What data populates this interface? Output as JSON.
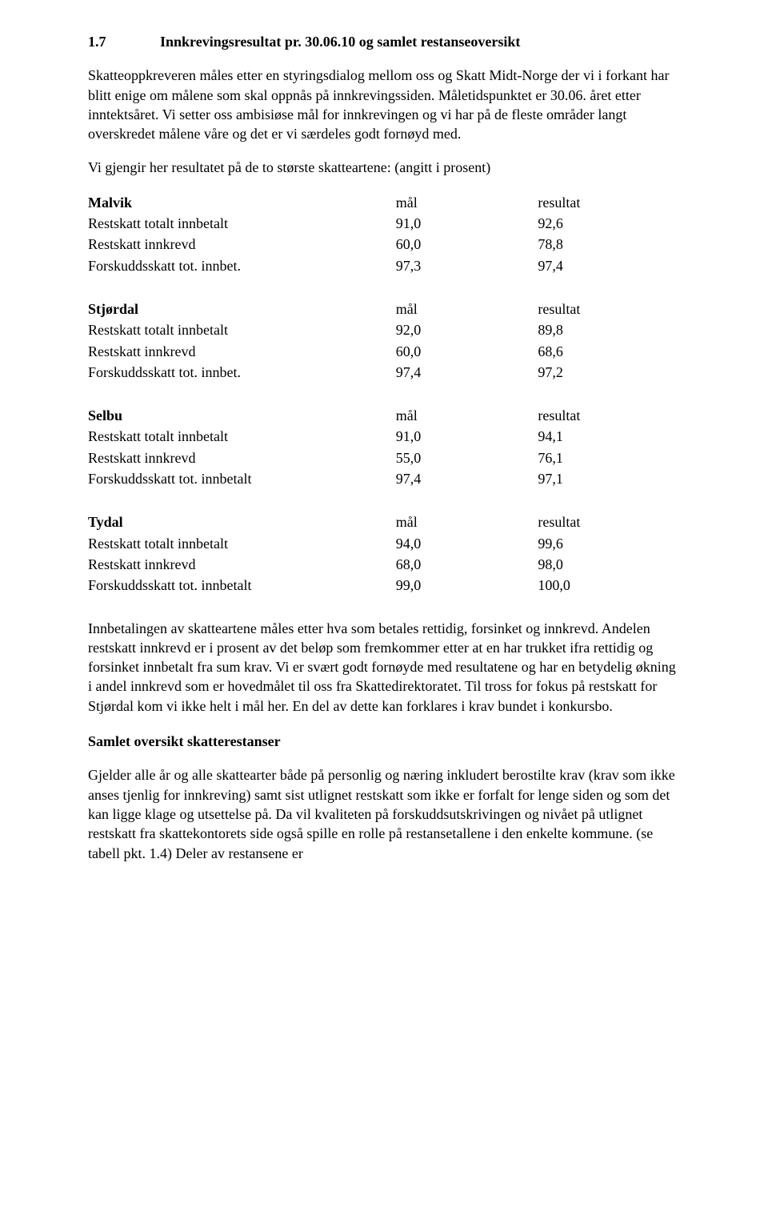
{
  "heading": {
    "number": "1.7",
    "title": "Innkrevingsresultat pr. 30.06.10 og samlet restanseoversikt"
  },
  "intro": "Skatteoppkreveren måles etter en styringsdialog mellom oss og Skatt Midt-Norge der vi i forkant har blitt enige om målene som skal oppnås på innkrevingssiden. Måletidspunktet er 30.06. året etter inntektsåret. Vi setter oss ambisiøse mål for innkrevingen og vi har på de fleste områder langt overskredet målene våre og det er vi særdeles godt fornøyd med.",
  "resultsIntro": "Vi gjengir her resultatet på de to største skatteartene: (angitt i prosent)",
  "colHeaders": {
    "goal": "mål",
    "result": "resultat"
  },
  "rowLabels": {
    "restTotal": "Restskatt totalt innbetalt",
    "restInnkrevd": "Restskatt innkrevd",
    "forskuddInnbet": "Forskuddsskatt tot. innbet.",
    "forskuddInnbetalt": "Forskuddsskatt tot. innbetalt"
  },
  "municipalities": {
    "malvik": {
      "name": "Malvik",
      "rows": [
        {
          "labelKey": "restTotal",
          "goal": "91,0",
          "result": "92,6"
        },
        {
          "labelKey": "restInnkrevd",
          "goal": "60,0",
          "result": "78,8"
        },
        {
          "labelKey": "forskuddInnbet",
          "goal": "97,3",
          "result": "97,4"
        }
      ]
    },
    "stjordal": {
      "name": "Stjørdal",
      "rows": [
        {
          "labelKey": "restTotal",
          "goal": "92,0",
          "result": "89,8"
        },
        {
          "labelKey": "restInnkrevd",
          "goal": "60,0",
          "result": "68,6"
        },
        {
          "labelKey": "forskuddInnbet",
          "goal": "97,4",
          "result": "97,2"
        }
      ]
    },
    "selbu": {
      "name": "Selbu",
      "rows": [
        {
          "labelKey": "restTotal",
          "goal": "91,0",
          "result": "94,1"
        },
        {
          "labelKey": "restInnkrevd",
          "goal": "55,0",
          "result": "76,1"
        },
        {
          "labelKey": "forskuddInnbetalt",
          "goal": "97,4",
          "result": "97,1"
        }
      ]
    },
    "tydal": {
      "name": "Tydal",
      "rows": [
        {
          "labelKey": "restTotal",
          "goal": "94,0",
          "result": "99,6"
        },
        {
          "labelKey": "restInnkrevd",
          "goal": "68,0",
          "result": "98,0"
        },
        {
          "labelKey": "forskuddInnbetalt",
          "goal": "99,0",
          "result": "100,0"
        }
      ]
    }
  },
  "paymentParagraph": "Innbetalingen av skatteartene måles etter hva som betales rettidig, forsinket og innkrevd. Andelen restskatt innkrevd er i prosent av det beløp som fremkommer etter at en har trukket ifra rettidig og forsinket innbetalt fra sum krav. Vi er svært godt fornøyde med resultatene og har en betydelig økning i andel innkrevd som er hovedmålet til oss fra Skattedirektoratet. Til tross for fokus på restskatt for Stjørdal kom vi ikke helt i mål her. En del av dette kan forklares i krav bundet i konkursbo.",
  "overviewHeading": "Samlet oversikt skatterestanser",
  "overviewParagraph": "Gjelder alle år og alle skattearter både på personlig og næring inkludert berostilte krav (krav som ikke anses tjenlig for innkreving) samt sist utlignet restskatt som ikke er forfalt for lenge siden og som det kan ligge klage og utsettelse på. Da vil kvaliteten på forskuddsutskrivingen og nivået på utlignet restskatt fra skattekontorets side også spille en rolle på restansetallene i den enkelte kommune. (se tabell pkt. 1.4) Deler av restansene er"
}
